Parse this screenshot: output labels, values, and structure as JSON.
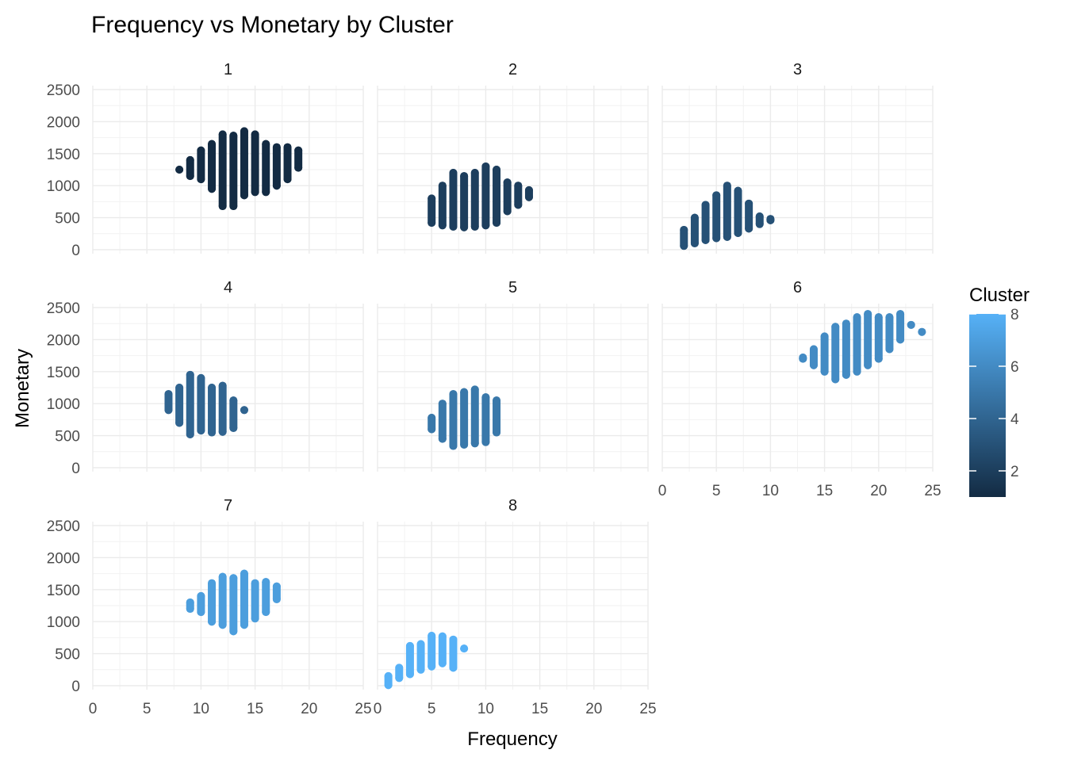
{
  "chart_data": {
    "type": "scatter",
    "title": "Frequency vs Monetary by Cluster",
    "xlabel": "Frequency",
    "ylabel": "Monetary",
    "xlim": [
      0,
      25
    ],
    "ylim": [
      0,
      2500
    ],
    "x_ticks": [
      0,
      5,
      10,
      15,
      20,
      25
    ],
    "x_tick_labels": [
      "0",
      "5",
      "10",
      "15",
      "20",
      "25"
    ],
    "y_ticks": [
      0,
      500,
      1000,
      1500,
      2000,
      2500
    ],
    "y_tick_labels": [
      "0",
      "500",
      "1000",
      "1500",
      "2000",
      "2500"
    ],
    "grid": true,
    "facet_layout": "3 rows x 3 columns, facet panels 1-8",
    "color_scale": {
      "title": "Cluster",
      "min": 1,
      "max": 8,
      "low_color": "#132B43",
      "high_color": "#56B1F7",
      "ticks": [
        2,
        4,
        6,
        8
      ],
      "tick_labels": [
        "2",
        "4",
        "6",
        "8"
      ],
      "placement": "right"
    },
    "panels": [
      {
        "label": "1",
        "cluster": 1,
        "columns": [
          {
            "x": 8,
            "ymin": 1250,
            "ymax": 1250
          },
          {
            "x": 9,
            "ymin": 1150,
            "ymax": 1400
          },
          {
            "x": 10,
            "ymin": 1100,
            "ymax": 1550
          },
          {
            "x": 11,
            "ymin": 950,
            "ymax": 1650
          },
          {
            "x": 12,
            "ymin": 680,
            "ymax": 1800
          },
          {
            "x": 13,
            "ymin": 680,
            "ymax": 1780
          },
          {
            "x": 14,
            "ymin": 850,
            "ymax": 1850
          },
          {
            "x": 15,
            "ymin": 900,
            "ymax": 1800
          },
          {
            "x": 16,
            "ymin": 900,
            "ymax": 1650
          },
          {
            "x": 17,
            "ymin": 1000,
            "ymax": 1600
          },
          {
            "x": 18,
            "ymin": 1100,
            "ymax": 1600
          },
          {
            "x": 19,
            "ymin": 1280,
            "ymax": 1550
          }
        ]
      },
      {
        "label": "2",
        "cluster": 2,
        "columns": [
          {
            "x": 5,
            "ymin": 420,
            "ymax": 800
          },
          {
            "x": 6,
            "ymin": 380,
            "ymax": 1000
          },
          {
            "x": 7,
            "ymin": 360,
            "ymax": 1200
          },
          {
            "x": 8,
            "ymin": 350,
            "ymax": 1150
          },
          {
            "x": 9,
            "ymin": 360,
            "ymax": 1200
          },
          {
            "x": 10,
            "ymin": 380,
            "ymax": 1300
          },
          {
            "x": 11,
            "ymin": 420,
            "ymax": 1250
          },
          {
            "x": 12,
            "ymin": 600,
            "ymax": 1050
          },
          {
            "x": 13,
            "ymin": 700,
            "ymax": 1000
          },
          {
            "x": 14,
            "ymin": 820,
            "ymax": 930
          }
        ]
      },
      {
        "label": "3",
        "cluster": 3,
        "columns": [
          {
            "x": 2,
            "ymin": 60,
            "ymax": 310
          },
          {
            "x": 3,
            "ymin": 100,
            "ymax": 500
          },
          {
            "x": 4,
            "ymin": 150,
            "ymax": 700
          },
          {
            "x": 5,
            "ymin": 180,
            "ymax": 850
          },
          {
            "x": 6,
            "ymin": 200,
            "ymax": 1000
          },
          {
            "x": 7,
            "ymin": 260,
            "ymax": 920
          },
          {
            "x": 8,
            "ymin": 330,
            "ymax": 720
          },
          {
            "x": 9,
            "ymin": 400,
            "ymax": 520
          },
          {
            "x": 10,
            "ymin": 460,
            "ymax": 480
          }
        ]
      },
      {
        "label": "4",
        "cluster": 4,
        "columns": [
          {
            "x": 7,
            "ymin": 900,
            "ymax": 1150
          },
          {
            "x": 8,
            "ymin": 700,
            "ymax": 1250
          },
          {
            "x": 9,
            "ymin": 520,
            "ymax": 1450
          },
          {
            "x": 10,
            "ymin": 580,
            "ymax": 1400
          },
          {
            "x": 11,
            "ymin": 550,
            "ymax": 1250
          },
          {
            "x": 12,
            "ymin": 560,
            "ymax": 1280
          },
          {
            "x": 13,
            "ymin": 620,
            "ymax": 1050
          },
          {
            "x": 14,
            "ymin": 900,
            "ymax": 900
          }
        ]
      },
      {
        "label": "5",
        "cluster": 5,
        "columns": [
          {
            "x": 5,
            "ymin": 600,
            "ymax": 780
          },
          {
            "x": 6,
            "ymin": 450,
            "ymax": 1000
          },
          {
            "x": 7,
            "ymin": 340,
            "ymax": 1150
          },
          {
            "x": 8,
            "ymin": 360,
            "ymax": 1180
          },
          {
            "x": 9,
            "ymin": 380,
            "ymax": 1220
          },
          {
            "x": 10,
            "ymin": 400,
            "ymax": 1100
          },
          {
            "x": 11,
            "ymin": 550,
            "ymax": 1050
          }
        ]
      },
      {
        "label": "6",
        "cluster": 6,
        "columns": [
          {
            "x": 13,
            "ymin": 1700,
            "ymax": 1720
          },
          {
            "x": 14,
            "ymin": 1600,
            "ymax": 1850
          },
          {
            "x": 15,
            "ymin": 1500,
            "ymax": 2050
          },
          {
            "x": 16,
            "ymin": 1380,
            "ymax": 2200
          },
          {
            "x": 17,
            "ymin": 1450,
            "ymax": 2250
          },
          {
            "x": 18,
            "ymin": 1500,
            "ymax": 2350
          },
          {
            "x": 19,
            "ymin": 1600,
            "ymax": 2400
          },
          {
            "x": 20,
            "ymin": 1700,
            "ymax": 2350
          },
          {
            "x": 21,
            "ymin": 1850,
            "ymax": 2350
          },
          {
            "x": 22,
            "ymin": 2000,
            "ymax": 2400
          },
          {
            "x": 23,
            "ymin": 2230,
            "ymax": 2230
          },
          {
            "x": 24,
            "ymin": 2120,
            "ymax": 2120
          }
        ]
      },
      {
        "label": "7",
        "cluster": 7,
        "columns": [
          {
            "x": 9,
            "ymin": 1200,
            "ymax": 1300
          },
          {
            "x": 10,
            "ymin": 1150,
            "ymax": 1400
          },
          {
            "x": 11,
            "ymin": 1000,
            "ymax": 1600
          },
          {
            "x": 12,
            "ymin": 950,
            "ymax": 1700
          },
          {
            "x": 13,
            "ymin": 850,
            "ymax": 1680
          },
          {
            "x": 14,
            "ymin": 950,
            "ymax": 1750
          },
          {
            "x": 15,
            "ymin": 1050,
            "ymax": 1600
          },
          {
            "x": 16,
            "ymin": 1150,
            "ymax": 1620
          },
          {
            "x": 17,
            "ymin": 1350,
            "ymax": 1550
          }
        ]
      },
      {
        "label": "8",
        "cluster": 8,
        "columns": [
          {
            "x": 1,
            "ymin": 10,
            "ymax": 150
          },
          {
            "x": 2,
            "ymin": 120,
            "ymax": 280
          },
          {
            "x": 3,
            "ymin": 180,
            "ymax": 620
          },
          {
            "x": 4,
            "ymin": 250,
            "ymax": 650
          },
          {
            "x": 5,
            "ymin": 300,
            "ymax": 780
          },
          {
            "x": 6,
            "ymin": 350,
            "ymax": 770
          },
          {
            "x": 7,
            "ymin": 280,
            "ymax": 720
          },
          {
            "x": 8,
            "ymin": 580,
            "ymax": 580
          }
        ]
      }
    ]
  }
}
